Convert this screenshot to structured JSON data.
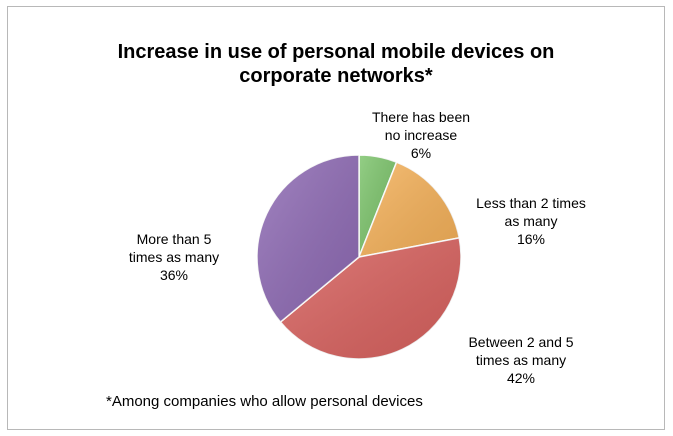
{
  "chart_data": {
    "type": "pie",
    "title_lines": [
      "Increase in use of personal mobile devices on",
      "corporate networks*"
    ],
    "slices": [
      {
        "label_lines": [
          "There has been",
          "no increase",
          "6%"
        ],
        "value": 6,
        "color": "#7cc46b"
      },
      {
        "label_lines": [
          "Less than 2 times",
          "as many",
          "16%"
        ],
        "value": 16,
        "color": "#f6b25a"
      },
      {
        "label_lines": [
          "Between 2 and 5",
          "times as many",
          "42%"
        ],
        "value": 42,
        "color": "#d9625f"
      },
      {
        "label_lines": [
          "More than 5",
          "times as many",
          "36%"
        ],
        "value": 36,
        "color": "#8f6bb5"
      }
    ],
    "footnote": "*Among companies who allow personal devices",
    "legend": "none"
  }
}
